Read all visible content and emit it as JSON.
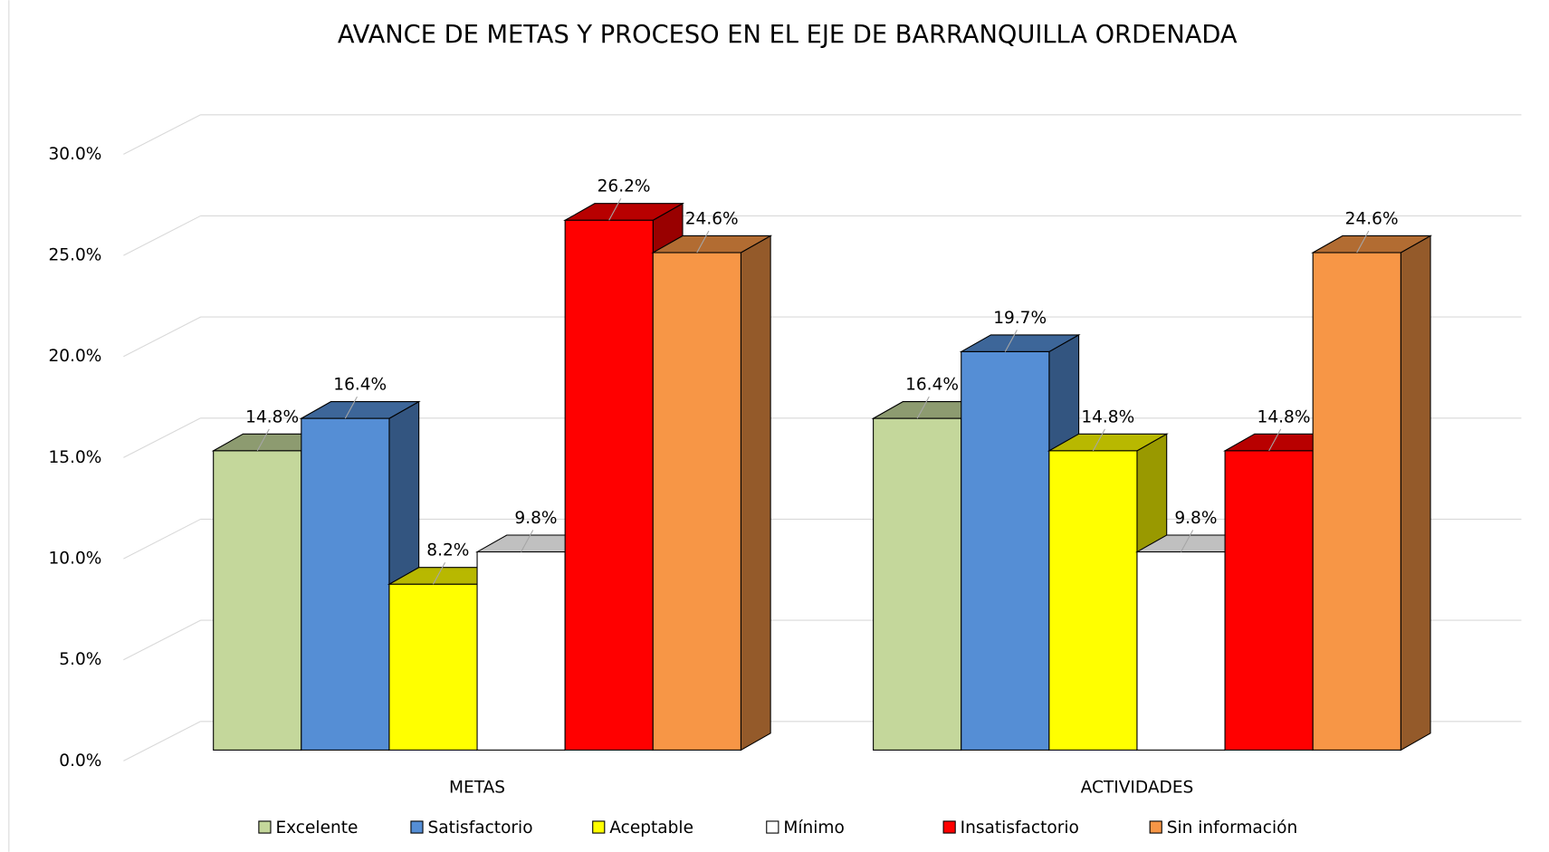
{
  "chart_data": {
    "type": "bar3d",
    "title": "AVANCE DE METAS Y PROCESO EN EL EJE DE BARRANQUILLA ORDENADA",
    "categories": [
      "METAS",
      "ACTIVIDADES"
    ],
    "series": [
      {
        "name": "Excelente",
        "color": "#c4d79b",
        "values": [
          14.8,
          16.4
        ],
        "value_labels": [
          "14.8%",
          "16.4%"
        ]
      },
      {
        "name": "Satisfactorio",
        "color": "#558ed5",
        "values": [
          16.4,
          19.7
        ],
        "value_labels": [
          "16.4%",
          "19.7%"
        ]
      },
      {
        "name": "Aceptable",
        "color": "#ffff00",
        "values": [
          8.2,
          14.8
        ],
        "value_labels": [
          "8.2%",
          "14.8%"
        ]
      },
      {
        "name": "Mínimo",
        "color": "#ffffff",
        "values": [
          9.8,
          9.8
        ],
        "value_labels": [
          "9.8%",
          "9.8%"
        ]
      },
      {
        "name": "Insatisfactorio",
        "color": "#ff0000",
        "values": [
          26.2,
          14.8
        ],
        "value_labels": [
          "26.2%",
          "14.8%"
        ]
      },
      {
        "name": "Sin información",
        "color": "#f79646",
        "values": [
          24.6,
          24.6
        ],
        "value_labels": [
          "24.6%",
          "24.6%"
        ]
      }
    ],
    "ylim": [
      0,
      30
    ],
    "yticks": [
      {
        "value": 0,
        "label": "0.0%"
      },
      {
        "value": 5,
        "label": "5.0%"
      },
      {
        "value": 10,
        "label": "10.0%"
      },
      {
        "value": 15,
        "label": "15.0%"
      },
      {
        "value": 20,
        "label": "20.0%"
      },
      {
        "value": 25,
        "label": "25.0%"
      },
      {
        "value": 30,
        "label": "30.0%"
      }
    ],
    "grid": true,
    "legend": "bottom"
  }
}
